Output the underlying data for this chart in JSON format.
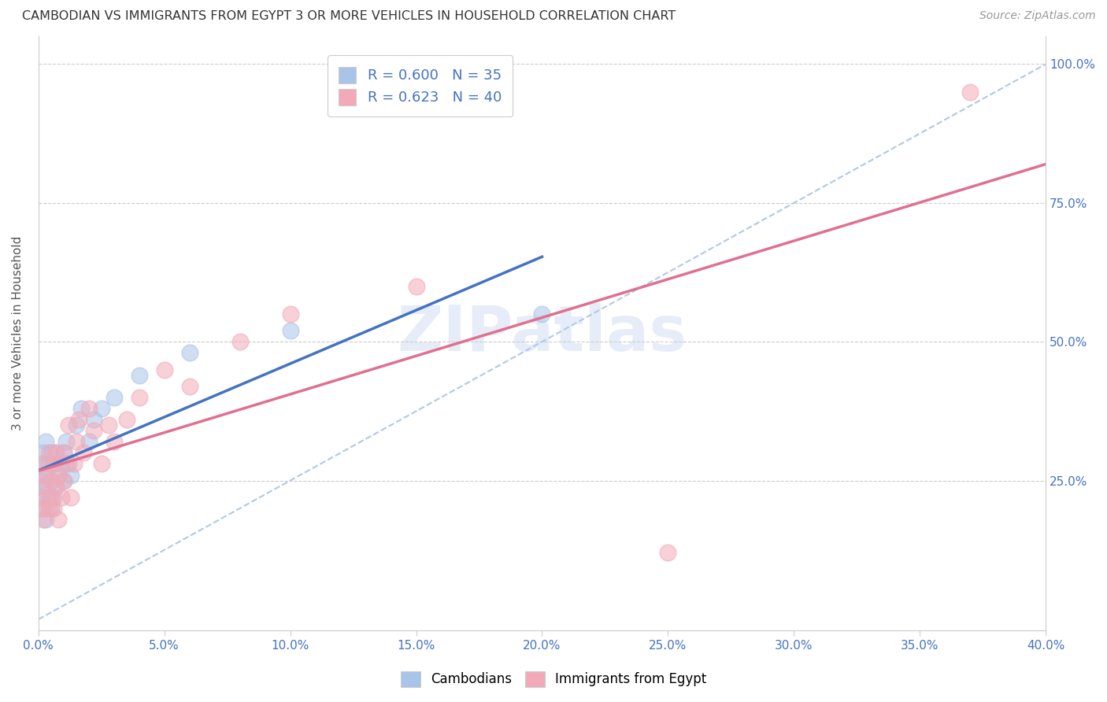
{
  "title": "CAMBODIAN VS IMMIGRANTS FROM EGYPT 3 OR MORE VEHICLES IN HOUSEHOLD CORRELATION CHART",
  "source": "Source: ZipAtlas.com",
  "ylabel": "3 or more Vehicles in Household",
  "xlim": [
    0.0,
    0.4
  ],
  "ylim": [
    -0.02,
    1.05
  ],
  "xtick_labels": [
    "0.0%",
    "5.0%",
    "10.0%",
    "15.0%",
    "20.0%",
    "25.0%",
    "30.0%",
    "35.0%",
    "40.0%"
  ],
  "xtick_vals": [
    0.0,
    0.05,
    0.1,
    0.15,
    0.2,
    0.25,
    0.3,
    0.35,
    0.4
  ],
  "ytick_labels": [
    "25.0%",
    "50.0%",
    "75.0%",
    "100.0%"
  ],
  "ytick_vals": [
    0.25,
    0.5,
    0.75,
    1.0
  ],
  "cambodian_color": "#a8c4e8",
  "egypt_color": "#f2aab8",
  "cambodian_line_color": "#4472c4",
  "egypt_line_color": "#e07090",
  "dash_color": "#b0c8e8",
  "R_cambodian": 0.6,
  "N_cambodian": 35,
  "R_egypt": 0.623,
  "N_egypt": 40,
  "legend_text_color": "#4472c4",
  "label_color": "#4472c4",
  "cambodian_x": [
    0.001,
    0.001,
    0.001,
    0.002,
    0.002,
    0.002,
    0.003,
    0.003,
    0.003,
    0.004,
    0.004,
    0.005,
    0.005,
    0.005,
    0.006,
    0.006,
    0.007,
    0.007,
    0.008,
    0.009,
    0.01,
    0.01,
    0.011,
    0.012,
    0.013,
    0.015,
    0.017,
    0.02,
    0.022,
    0.025,
    0.03,
    0.04,
    0.06,
    0.1,
    0.2
  ],
  "cambodian_y": [
    0.22,
    0.25,
    0.28,
    0.2,
    0.24,
    0.3,
    0.18,
    0.26,
    0.32,
    0.22,
    0.28,
    0.2,
    0.25,
    0.3,
    0.22,
    0.28,
    0.24,
    0.3,
    0.26,
    0.28,
    0.25,
    0.3,
    0.32,
    0.28,
    0.26,
    0.35,
    0.38,
    0.32,
    0.36,
    0.38,
    0.4,
    0.44,
    0.48,
    0.52,
    0.55
  ],
  "egypt_x": [
    0.001,
    0.001,
    0.002,
    0.002,
    0.003,
    0.003,
    0.004,
    0.004,
    0.005,
    0.005,
    0.006,
    0.006,
    0.007,
    0.007,
    0.008,
    0.008,
    0.009,
    0.01,
    0.01,
    0.011,
    0.012,
    0.013,
    0.014,
    0.015,
    0.016,
    0.018,
    0.02,
    0.022,
    0.025,
    0.028,
    0.03,
    0.035,
    0.04,
    0.05,
    0.06,
    0.08,
    0.1,
    0.15,
    0.25,
    0.37
  ],
  "egypt_y": [
    0.2,
    0.24,
    0.18,
    0.26,
    0.22,
    0.28,
    0.2,
    0.3,
    0.22,
    0.25,
    0.28,
    0.2,
    0.24,
    0.3,
    0.18,
    0.26,
    0.22,
    0.25,
    0.3,
    0.28,
    0.35,
    0.22,
    0.28,
    0.32,
    0.36,
    0.3,
    0.38,
    0.34,
    0.28,
    0.35,
    0.32,
    0.36,
    0.4,
    0.45,
    0.42,
    0.5,
    0.55,
    0.6,
    0.12,
    0.95
  ]
}
